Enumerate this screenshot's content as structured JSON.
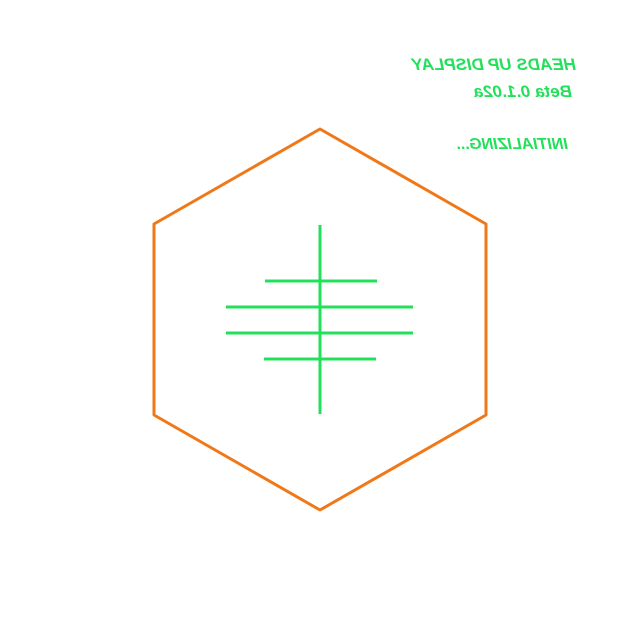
{
  "hud": {
    "title": "HEADS UP DISPLAY",
    "version": "Beta 0.1.02a",
    "status": "INITIALIZING...",
    "text_mirrored": true
  },
  "colors": {
    "background": "#ffffff",
    "frame": "#f07818",
    "reticle": "#22e05a",
    "text": "#22e05a"
  },
  "icons": {
    "frame": "hexagon-frame-icon",
    "reticle": "crosshair-reticle-icon"
  }
}
